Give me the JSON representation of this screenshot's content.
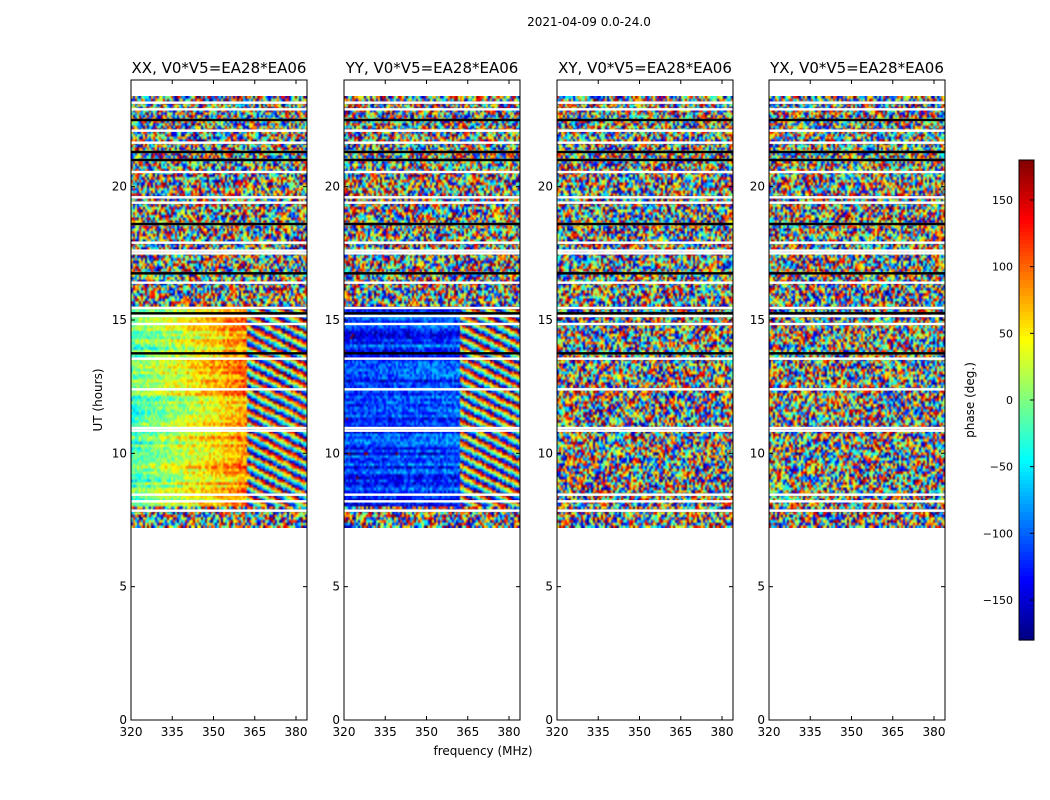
{
  "figure_title": "2021-04-09 0.0-24.0",
  "colorbar": {
    "label": "phase (deg.)",
    "range": [
      -180,
      180
    ],
    "ticks": [
      -150,
      -100,
      -50,
      0,
      50,
      100,
      150
    ],
    "tick_labels": [
      "−150",
      "−100",
      "−50",
      "0",
      "50",
      "100",
      "150"
    ]
  },
  "chart_data": {
    "type": "heatmap",
    "title": "2021-04-09 0.0-24.0",
    "xlabel": "frequency (MHz)",
    "ylabel": "UT (hours)",
    "xlim": [
      320,
      384
    ],
    "ylim": [
      0,
      24
    ],
    "xticks": [
      320,
      335,
      350,
      365,
      380
    ],
    "yticks": [
      0,
      5,
      10,
      15,
      20
    ],
    "colorscale": "jet",
    "value_label": "phase (deg.)",
    "value_range": [
      -180,
      180
    ],
    "data_time_range_hours": [
      7.2,
      23.4
    ],
    "panels": [
      {
        "title": "XX, V0*V5=EA28*EA06",
        "pattern": "ramp",
        "mean_phase_deg": 20,
        "ramp_deg_per_MHz": 2.5,
        "break_freq_MHz": 362,
        "coherent_time_range_hours": [
          8.0,
          15.5
        ]
      },
      {
        "title": "YY, V0*V5=EA28*EA06",
        "pattern": "flat",
        "mean_phase_deg": -120,
        "ramp_deg_per_MHz": 0.3,
        "break_freq_MHz": 362,
        "coherent_time_range_hours": [
          8.0,
          15.5
        ]
      },
      {
        "title": "XY, V0*V5=EA28*EA06",
        "pattern": "noise"
      },
      {
        "title": "YX, V0*V5=EA28*EA06",
        "pattern": "noise"
      }
    ]
  }
}
